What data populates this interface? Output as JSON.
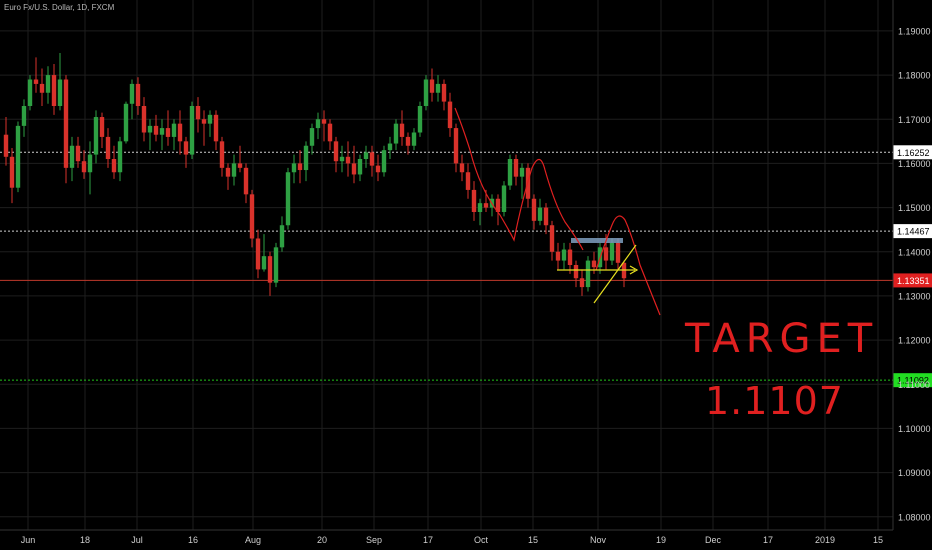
{
  "header": {
    "title": "Euro Fx/U.S. Dollar, 1D, FXCM"
  },
  "colors": {
    "background": "#000000",
    "grid": "#1e1e1e",
    "up": "#2ea043",
    "down": "#d9322b",
    "axis_text": "#cfcfcf",
    "level_white": "#cfcfcf",
    "level_red": "#c0392b",
    "level_green": "#22c21a",
    "annotation_red": "#e02020",
    "annotation_yellow": "#e8e020",
    "annotation_blue": "#7f9fbf"
  },
  "chart_data": {
    "type": "candlestick",
    "title": "Euro Fx/U.S. Dollar, 1D, FXCM",
    "ylim": [
      1.077,
      1.197
    ],
    "x_tick_labels": [
      "Jun",
      "18",
      "Jul",
      "16",
      "Aug",
      "20",
      "Sep",
      "17",
      "Oct",
      "15",
      "Nov",
      "19",
      "Dec",
      "17",
      "2019",
      "15"
    ],
    "y_tick_labels": [
      "1.19000",
      "1.18000",
      "1.17000",
      "1.16000",
      "1.15000",
      "1.14000",
      "1.13000",
      "1.12000",
      "1.11000",
      "1.10000",
      "1.09000",
      "1.08000"
    ],
    "y_ticks": [
      1.19,
      1.18,
      1.17,
      1.16,
      1.15,
      1.14,
      1.13,
      1.12,
      1.11,
      1.1,
      1.09,
      1.08
    ],
    "levels": [
      {
        "label": "1.16252",
        "value": 1.16252,
        "style": "white-dotted"
      },
      {
        "label": "1.14467",
        "value": 1.14467,
        "style": "white-dotted"
      },
      {
        "label": "1.13351",
        "value": 1.13351,
        "style": "red-current"
      },
      {
        "label": "1.11092",
        "value": 1.11092,
        "style": "green-dotted"
      }
    ],
    "candles": [
      [
        1.1665,
        1.1705,
        1.1595,
        1.1615
      ],
      [
        1.1615,
        1.1635,
        1.151,
        1.1545
      ],
      [
        1.1545,
        1.1695,
        1.1535,
        1.1685
      ],
      [
        1.1685,
        1.1745,
        1.166,
        1.173
      ],
      [
        1.173,
        1.18,
        1.172,
        1.179
      ],
      [
        1.179,
        1.184,
        1.176,
        1.178
      ],
      [
        1.178,
        1.1815,
        1.173,
        1.176
      ],
      [
        1.176,
        1.182,
        1.1735,
        1.18
      ],
      [
        1.18,
        1.1825,
        1.171,
        1.173
      ],
      [
        1.173,
        1.185,
        1.172,
        1.179
      ],
      [
        1.179,
        1.18,
        1.1555,
        1.159
      ],
      [
        1.159,
        1.166,
        1.156,
        1.164
      ],
      [
        1.164,
        1.166,
        1.159,
        1.1605
      ],
      [
        1.1605,
        1.163,
        1.1565,
        1.158
      ],
      [
        1.158,
        1.165,
        1.153,
        1.162
      ],
      [
        1.162,
        1.172,
        1.16,
        1.1705
      ],
      [
        1.1705,
        1.1715,
        1.1635,
        1.166
      ],
      [
        1.166,
        1.168,
        1.159,
        1.161
      ],
      [
        1.161,
        1.164,
        1.1565,
        1.158
      ],
      [
        1.158,
        1.166,
        1.156,
        1.165
      ],
      [
        1.165,
        1.174,
        1.1645,
        1.1735
      ],
      [
        1.1735,
        1.179,
        1.17,
        1.178
      ],
      [
        1.178,
        1.1795,
        1.171,
        1.173
      ],
      [
        1.173,
        1.175,
        1.165,
        1.167
      ],
      [
        1.167,
        1.17,
        1.163,
        1.1685
      ],
      [
        1.1685,
        1.171,
        1.165,
        1.1665
      ],
      [
        1.1665,
        1.17,
        1.163,
        1.168
      ],
      [
        1.168,
        1.172,
        1.164,
        1.166
      ],
      [
        1.166,
        1.17,
        1.163,
        1.169
      ],
      [
        1.169,
        1.172,
        1.162,
        1.165
      ],
      [
        1.165,
        1.166,
        1.159,
        1.162
      ],
      [
        1.162,
        1.174,
        1.161,
        1.173
      ],
      [
        1.173,
        1.175,
        1.167,
        1.17
      ],
      [
        1.17,
        1.172,
        1.164,
        1.169
      ],
      [
        1.169,
        1.172,
        1.166,
        1.171
      ],
      [
        1.171,
        1.172,
        1.163,
        1.165
      ],
      [
        1.165,
        1.166,
        1.157,
        1.159
      ],
      [
        1.159,
        1.16,
        1.154,
        1.157
      ],
      [
        1.157,
        1.162,
        1.155,
        1.16
      ],
      [
        1.16,
        1.164,
        1.158,
        1.159
      ],
      [
        1.159,
        1.16,
        1.151,
        1.153
      ],
      [
        1.153,
        1.154,
        1.141,
        1.143
      ],
      [
        1.143,
        1.145,
        1.134,
        1.136
      ],
      [
        1.136,
        1.144,
        1.1355,
        1.139
      ],
      [
        1.139,
        1.14,
        1.13,
        1.133
      ],
      [
        1.133,
        1.142,
        1.132,
        1.141
      ],
      [
        1.141,
        1.148,
        1.14,
        1.146
      ],
      [
        1.146,
        1.159,
        1.145,
        1.158
      ],
      [
        1.158,
        1.162,
        1.1555,
        1.16
      ],
      [
        1.16,
        1.163,
        1.1555,
        1.1585
      ],
      [
        1.1585,
        1.165,
        1.156,
        1.164
      ],
      [
        1.164,
        1.169,
        1.162,
        1.168
      ],
      [
        1.168,
        1.1715,
        1.1655,
        1.17
      ],
      [
        1.17,
        1.172,
        1.165,
        1.169
      ],
      [
        1.169,
        1.17,
        1.163,
        1.165
      ],
      [
        1.165,
        1.166,
        1.158,
        1.1605
      ],
      [
        1.1605,
        1.164,
        1.158,
        1.1615
      ],
      [
        1.1615,
        1.165,
        1.157,
        1.16
      ],
      [
        1.16,
        1.164,
        1.1555,
        1.1575
      ],
      [
        1.1575,
        1.162,
        1.156,
        1.161
      ],
      [
        1.161,
        1.164,
        1.159,
        1.1625
      ],
      [
        1.1625,
        1.164,
        1.157,
        1.1595
      ],
      [
        1.1595,
        1.162,
        1.156,
        1.158
      ],
      [
        1.158,
        1.164,
        1.157,
        1.163
      ],
      [
        1.163,
        1.166,
        1.161,
        1.1645
      ],
      [
        1.1645,
        1.17,
        1.163,
        1.169
      ],
      [
        1.169,
        1.172,
        1.164,
        1.166
      ],
      [
        1.166,
        1.167,
        1.162,
        1.164
      ],
      [
        1.164,
        1.168,
        1.163,
        1.167
      ],
      [
        1.167,
        1.174,
        1.166,
        1.173
      ],
      [
        1.173,
        1.18,
        1.172,
        1.179
      ],
      [
        1.179,
        1.1815,
        1.174,
        1.176
      ],
      [
        1.176,
        1.18,
        1.174,
        1.178
      ],
      [
        1.178,
        1.179,
        1.172,
        1.174
      ],
      [
        1.174,
        1.176,
        1.166,
        1.168
      ],
      [
        1.168,
        1.169,
        1.158,
        1.16
      ],
      [
        1.16,
        1.162,
        1.156,
        1.158
      ],
      [
        1.158,
        1.16,
        1.152,
        1.154
      ],
      [
        1.154,
        1.156,
        1.147,
        1.149
      ],
      [
        1.149,
        1.152,
        1.146,
        1.151
      ],
      [
        1.151,
        1.154,
        1.149,
        1.15
      ],
      [
        1.15,
        1.153,
        1.148,
        1.152
      ],
      [
        1.152,
        1.153,
        1.146,
        1.149
      ],
      [
        1.149,
        1.156,
        1.148,
        1.155
      ],
      [
        1.155,
        1.162,
        1.154,
        1.161
      ],
      [
        1.161,
        1.162,
        1.155,
        1.157
      ],
      [
        1.157,
        1.16,
        1.152,
        1.159
      ],
      [
        1.159,
        1.16,
        1.15,
        1.152
      ],
      [
        1.152,
        1.153,
        1.145,
        1.147
      ],
      [
        1.147,
        1.152,
        1.146,
        1.15
      ],
      [
        1.15,
        1.151,
        1.144,
        1.146
      ],
      [
        1.146,
        1.147,
        1.138,
        1.14
      ],
      [
        1.14,
        1.142,
        1.136,
        1.138
      ],
      [
        1.138,
        1.142,
        1.136,
        1.1405
      ],
      [
        1.1405,
        1.142,
        1.135,
        1.137
      ],
      [
        1.137,
        1.138,
        1.132,
        1.134
      ],
      [
        1.134,
        1.136,
        1.13,
        1.132
      ],
      [
        1.132,
        1.139,
        1.131,
        1.138
      ],
      [
        1.138,
        1.14,
        1.135,
        1.1365
      ],
      [
        1.1365,
        1.142,
        1.135,
        1.141
      ],
      [
        1.141,
        1.144,
        1.136,
        1.138
      ],
      [
        1.138,
        1.143,
        1.137,
        1.142
      ],
      [
        1.142,
        1.143,
        1.136,
        1.1375
      ],
      [
        1.1375,
        1.138,
        1.132,
        1.134
      ]
    ],
    "annotations": {
      "target_label": "TARGET",
      "target_value_label": "1.1107"
    }
  }
}
